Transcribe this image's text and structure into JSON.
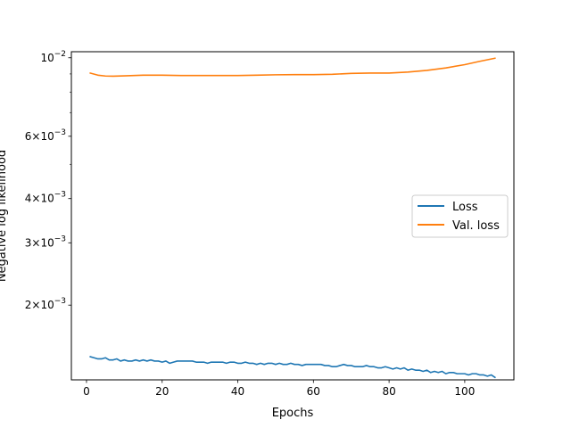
{
  "chart_data": {
    "type": "line",
    "title": "",
    "xlabel": "Epochs",
    "ylabel": "Negative log likelihood",
    "xlim": [
      -4,
      113
    ],
    "ylim": [
      0.00123,
      0.0104
    ],
    "yscale": "log",
    "grid": false,
    "legend_position": "center-right",
    "x_ticks": [
      0,
      20,
      40,
      60,
      80,
      100
    ],
    "y_ticks": [
      {
        "value": 0.01,
        "mantissa": "",
        "exponent": "−2"
      },
      {
        "value": 0.006,
        "mantissa": "6",
        "exponent": "−3"
      },
      {
        "value": 0.004,
        "mantissa": "4",
        "exponent": "−3"
      },
      {
        "value": 0.003,
        "mantissa": "3",
        "exponent": "−3"
      },
      {
        "value": 0.002,
        "mantissa": "2",
        "exponent": "−3"
      }
    ],
    "series": [
      {
        "name": "Loss",
        "color": "#1f77b4",
        "x": [
          1,
          2,
          3,
          4,
          5,
          6,
          7,
          8,
          9,
          10,
          11,
          12,
          13,
          14,
          15,
          16,
          17,
          18,
          19,
          20,
          21,
          22,
          23,
          24,
          25,
          26,
          27,
          28,
          29,
          30,
          31,
          32,
          33,
          34,
          35,
          36,
          37,
          38,
          39,
          40,
          41,
          42,
          43,
          44,
          45,
          46,
          47,
          48,
          49,
          50,
          51,
          52,
          53,
          54,
          55,
          56,
          57,
          58,
          59,
          60,
          61,
          62,
          63,
          64,
          65,
          66,
          67,
          68,
          69,
          70,
          71,
          72,
          73,
          74,
          75,
          76,
          77,
          78,
          79,
          80,
          81,
          82,
          83,
          84,
          85,
          86,
          87,
          88,
          89,
          90,
          91,
          92,
          93,
          94,
          95,
          96,
          97,
          98,
          99,
          100,
          101,
          102,
          103,
          104,
          105,
          106,
          107,
          108
        ],
        "y": [
          0.00143,
          0.00142,
          0.00141,
          0.00141,
          0.00142,
          0.0014,
          0.0014,
          0.00141,
          0.00139,
          0.0014,
          0.00139,
          0.00139,
          0.0014,
          0.00139,
          0.0014,
          0.00139,
          0.0014,
          0.00139,
          0.00139,
          0.00138,
          0.00139,
          0.00137,
          0.00138,
          0.00139,
          0.00139,
          0.00139,
          0.00139,
          0.00139,
          0.00138,
          0.00138,
          0.00138,
          0.00137,
          0.00138,
          0.00138,
          0.00138,
          0.00138,
          0.00137,
          0.00138,
          0.00138,
          0.00137,
          0.00137,
          0.00138,
          0.00137,
          0.00137,
          0.00136,
          0.00137,
          0.00136,
          0.00137,
          0.00137,
          0.00136,
          0.00137,
          0.00136,
          0.00136,
          0.00137,
          0.00136,
          0.00136,
          0.00135,
          0.00136,
          0.00136,
          0.00136,
          0.00136,
          0.00136,
          0.00135,
          0.00135,
          0.00134,
          0.00134,
          0.00135,
          0.00136,
          0.00135,
          0.00135,
          0.00134,
          0.00134,
          0.00134,
          0.00135,
          0.00134,
          0.00134,
          0.00133,
          0.00133,
          0.00134,
          0.00133,
          0.00132,
          0.00133,
          0.00132,
          0.00133,
          0.00131,
          0.00132,
          0.00131,
          0.00131,
          0.0013,
          0.00131,
          0.00129,
          0.0013,
          0.00129,
          0.0013,
          0.00128,
          0.00129,
          0.00129,
          0.00128,
          0.00128,
          0.00128,
          0.00127,
          0.00128,
          0.00128,
          0.00127,
          0.00127,
          0.00126,
          0.00127,
          0.00125
        ]
      },
      {
        "name": "Val. loss",
        "color": "#ff7f0e",
        "x": [
          1,
          3,
          5,
          7,
          10,
          15,
          20,
          25,
          30,
          35,
          40,
          45,
          50,
          55,
          60,
          65,
          70,
          75,
          80,
          85,
          90,
          95,
          100,
          104,
          108
        ],
        "y": [
          0.00905,
          0.00893,
          0.00888,
          0.00887,
          0.00889,
          0.00893,
          0.00893,
          0.00891,
          0.00891,
          0.00891,
          0.00891,
          0.00893,
          0.00895,
          0.00896,
          0.00896,
          0.00898,
          0.00903,
          0.00905,
          0.00905,
          0.00911,
          0.00921,
          0.00936,
          0.00956,
          0.00977,
          0.00997
        ]
      }
    ]
  }
}
